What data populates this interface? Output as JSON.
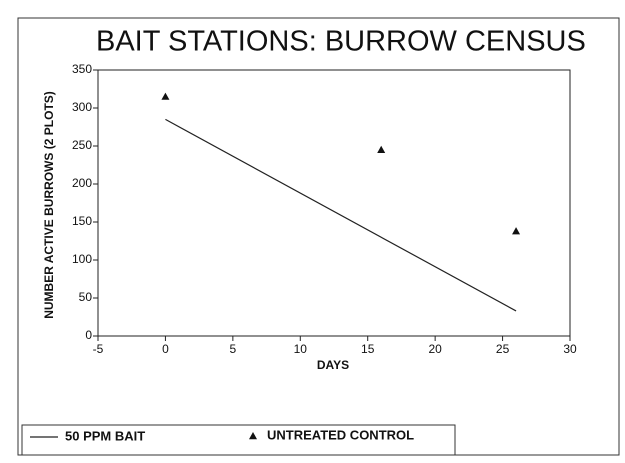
{
  "chart_data": {
    "type": "line",
    "title": "BAIT STATIONS: BURROW CENSUS",
    "xlabel": "DAYS",
    "ylabel": "NUMBER ACTIVE BURROWS (2 PLOTS)",
    "xlim": [
      -5,
      30
    ],
    "xticks": [
      -5,
      0,
      5,
      10,
      15,
      20,
      25,
      30
    ],
    "ylim": [
      0,
      350
    ],
    "yticks": [
      0,
      50,
      100,
      150,
      200,
      250,
      300,
      350
    ],
    "series": [
      {
        "name": "50 PPM BAIT",
        "style": "line",
        "color": "#222222",
        "x": [
          0,
          26
        ],
        "values": [
          285,
          33
        ]
      },
      {
        "name": "UNTREATED CONTROL",
        "style": "marker",
        "color": "#111111",
        "x": [
          0,
          16,
          26
        ],
        "values": [
          315,
          245,
          138
        ]
      }
    ]
  }
}
